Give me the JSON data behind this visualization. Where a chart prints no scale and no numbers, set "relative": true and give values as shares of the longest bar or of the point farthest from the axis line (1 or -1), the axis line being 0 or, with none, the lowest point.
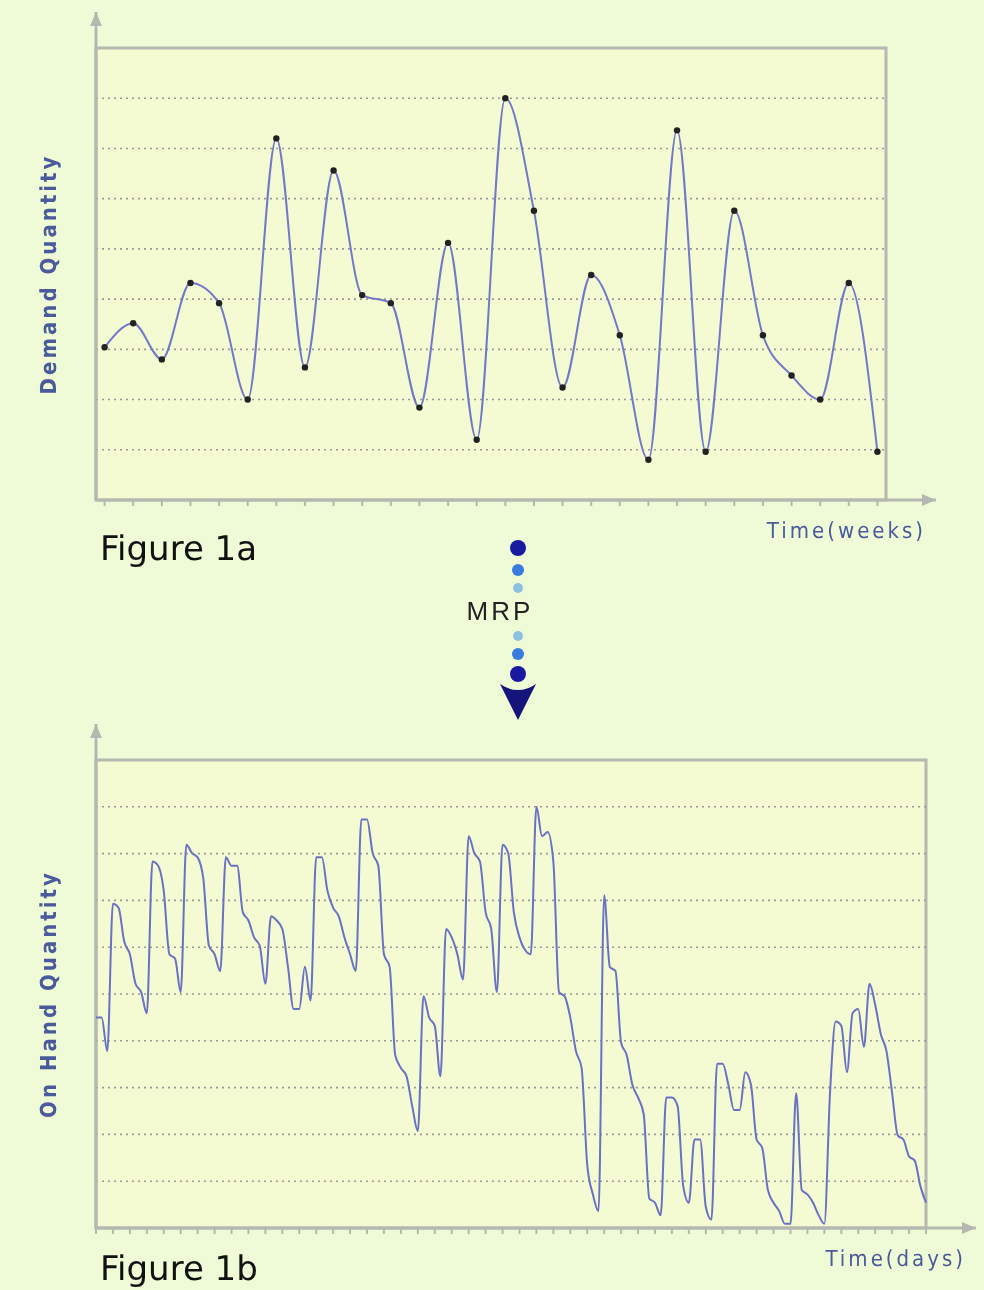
{
  "chart_data": [
    {
      "type": "line",
      "relative": true,
      "title": "Figure 1a",
      "xlabel": "Time(weeks)",
      "ylabel": "Demand Quantity",
      "grid": "y",
      "marker": "circle",
      "line_style": "solid",
      "annotations": [
        "MRP"
      ],
      "categories": [
        null,
        null,
        null,
        null,
        null,
        null,
        null,
        null,
        null,
        null,
        null,
        null,
        null,
        null,
        null,
        null,
        null,
        null,
        null,
        null,
        null,
        null,
        null,
        null,
        null,
        null,
        null,
        null
      ],
      "series": [
        {
          "color": "#7478c8",
          "values": [
            0.38,
            0.44,
            0.35,
            0.54,
            0.49,
            0.25,
            0.9,
            0.33,
            0.82,
            0.51,
            0.49,
            0.23,
            0.64,
            0.15,
            1,
            0.72,
            0.28,
            0.56,
            0.41,
            0.1,
            0.92,
            0.12,
            0.72,
            0.41,
            0.31,
            0.25,
            0.54,
            0.12
          ]
        }
      ]
    },
    {
      "type": "line",
      "relative": true,
      "title": "Figure 1b",
      "xlabel": "Time(days)",
      "ylabel": "On Hand Quantity",
      "grid": "y",
      "marker": "none",
      "line_style": "solid",
      "categories": [
        null,
        null,
        null,
        null,
        null,
        null,
        null,
        null,
        null,
        null,
        null,
        null,
        null,
        null,
        null,
        null,
        null,
        null,
        null,
        null,
        null,
        null,
        null,
        null,
        null,
        null,
        null,
        null,
        null,
        null,
        null,
        null,
        null,
        null,
        null,
        null,
        null,
        null,
        null,
        null,
        null,
        null,
        null,
        null,
        null,
        null,
        null,
        null,
        null,
        null,
        null,
        null,
        null,
        null,
        null,
        null,
        null,
        null,
        null,
        null,
        null,
        null,
        null,
        null,
        null,
        null,
        null,
        null,
        null,
        null,
        null,
        null,
        null,
        null,
        null,
        null,
        null,
        null,
        null,
        null,
        null,
        null,
        null,
        null,
        null,
        null,
        null,
        null,
        null,
        null,
        null,
        null,
        null,
        null,
        null,
        null,
        null,
        null,
        null,
        null,
        null,
        null,
        null,
        null,
        null,
        null,
        null,
        null,
        null,
        null,
        null,
        null,
        null,
        null,
        null,
        null,
        null,
        null,
        null,
        null,
        null,
        null,
        null,
        null,
        null,
        null,
        null,
        null,
        null,
        null,
        null,
        null,
        null,
        null,
        null,
        null,
        null,
        null,
        null,
        null,
        null,
        null,
        null,
        null,
        null,
        null,
        null,
        null
      ],
      "series": [
        {
          "color": "#6a70c4",
          "values": [
            0.5,
            0.5,
            0.42,
            0.77,
            0.76,
            0.68,
            0.65,
            0.58,
            0.56,
            0.51,
            0.87,
            0.86,
            0.8,
            0.65,
            0.64,
            0.56,
            0.91,
            0.89,
            0.88,
            0.83,
            0.67,
            0.65,
            0.61,
            0.88,
            0.86,
            0.86,
            0.75,
            0.73,
            0.69,
            0.67,
            0.58,
            0.74,
            0.73,
            0.71,
            0.62,
            0.52,
            0.52,
            0.62,
            0.54,
            0.88,
            0.88,
            0.8,
            0.76,
            0.74,
            0.69,
            0.65,
            0.61,
            0.97,
            0.97,
            0.89,
            0.86,
            0.65,
            0.62,
            0.41,
            0.38,
            0.36,
            0.29,
            0.23,
            0.55,
            0.5,
            0.48,
            0.36,
            0.71,
            0.69,
            0.65,
            0.59,
            0.93,
            0.89,
            0.87,
            0.75,
            0.71,
            0.56,
            0.91,
            0.89,
            0.75,
            0.69,
            0.66,
            0.65,
            1,
            0.93,
            0.94,
            0.87,
            0.56,
            0.55,
            0.5,
            0.42,
            0.38,
            0.15,
            0.08,
            0.04,
            0.79,
            0.62,
            0.61,
            0.44,
            0.41,
            0.34,
            0.31,
            0.27,
            0.07,
            0.06,
            0.03,
            0.31,
            0.31,
            0.29,
            0.1,
            0.06,
            0.21,
            0.21,
            0.05,
            0.02,
            0.39,
            0.39,
            0.34,
            0.28,
            0.28,
            0.37,
            0.34,
            0.21,
            0.19,
            0.09,
            0.06,
            0.04,
            0.01,
            0.01,
            0.32,
            0.09,
            0.08,
            0.06,
            0.03,
            0.01,
            0.32,
            0.49,
            0.48,
            0.37,
            0.51,
            0.52,
            0.43,
            0.58,
            0.53,
            0.46,
            0.42,
            0.32,
            0.22,
            0.21,
            0.17,
            0.16,
            0.1,
            0.06
          ]
        }
      ]
    }
  ]
}
